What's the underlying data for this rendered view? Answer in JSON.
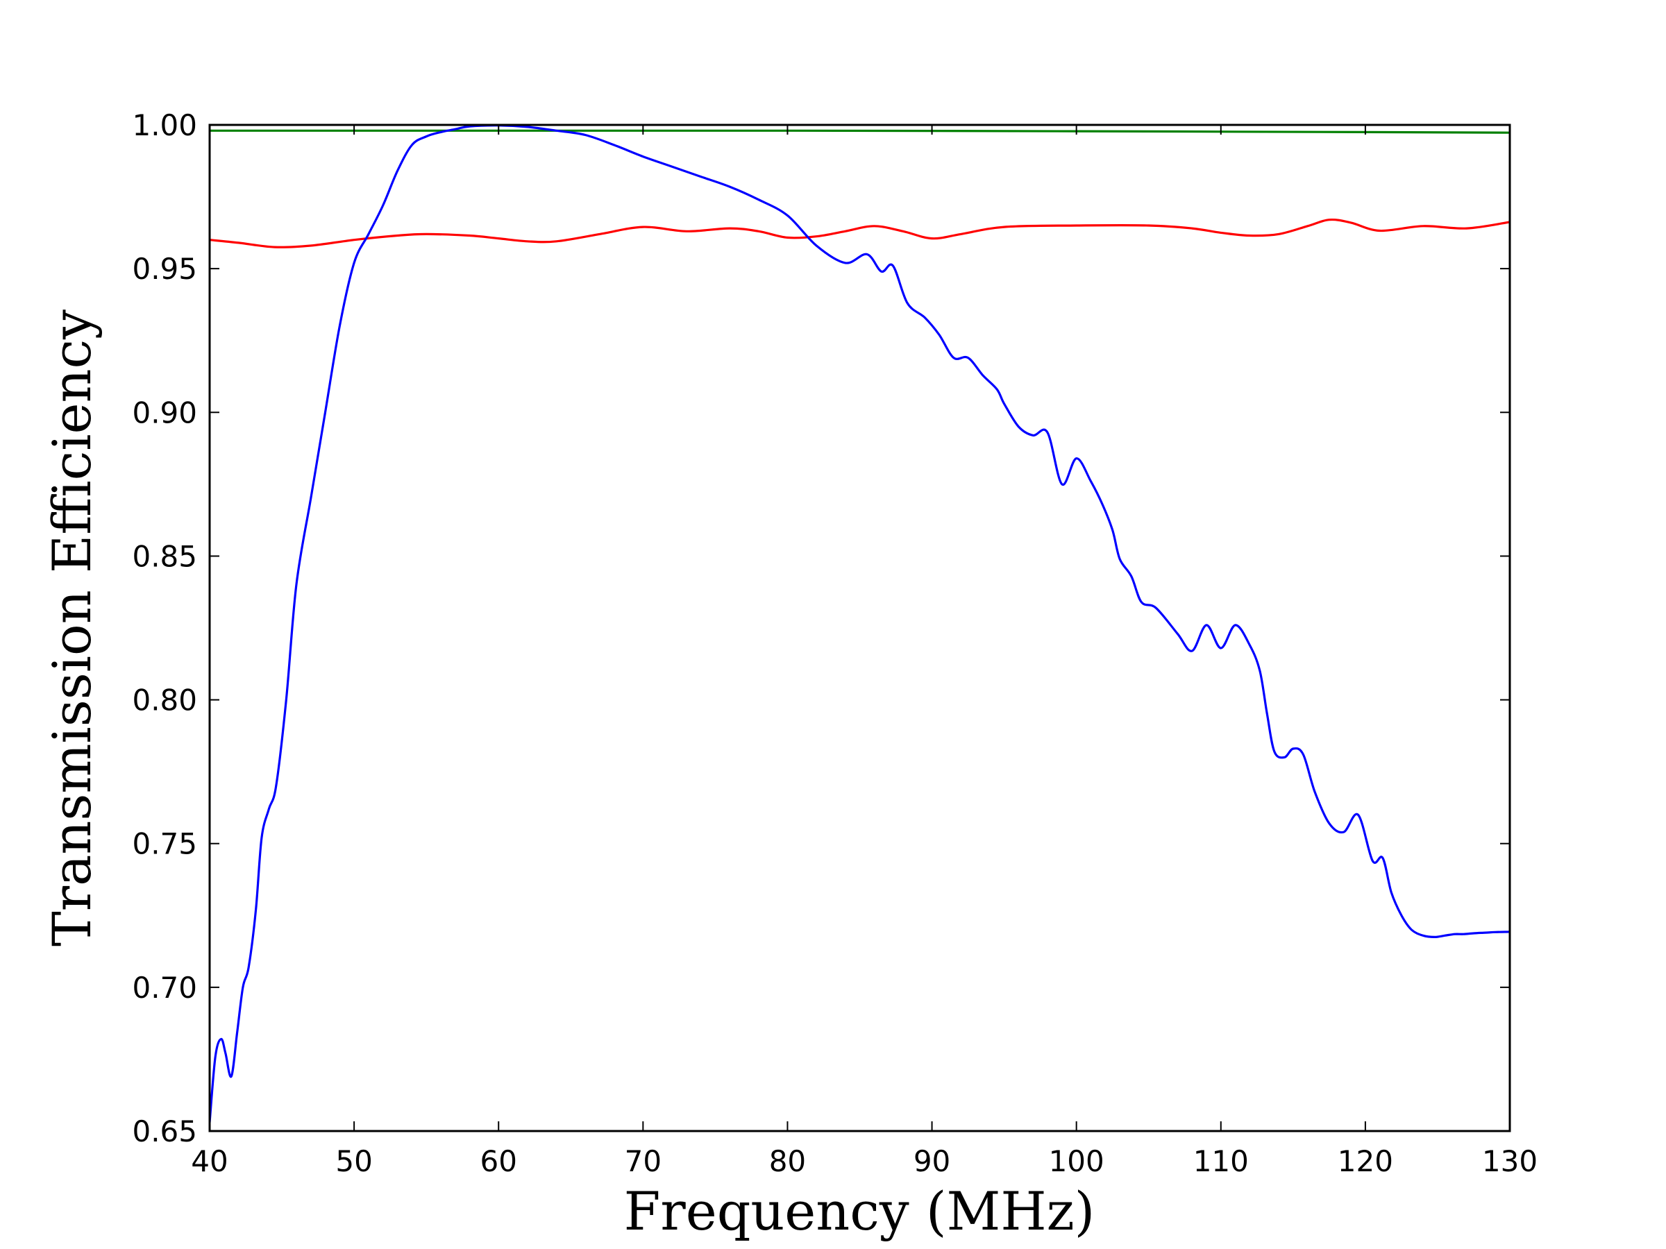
{
  "chart_data": {
    "type": "line",
    "title": "",
    "xlabel": "Frequency (MHz)",
    "ylabel": "Transmission Efficiency",
    "xlim": [
      40,
      130
    ],
    "ylim": [
      0.65,
      1.0
    ],
    "xticks": [
      40,
      50,
      60,
      70,
      80,
      90,
      100,
      110,
      120,
      130
    ],
    "xtick_labels": [
      "40",
      "50",
      "60",
      "70",
      "80",
      "90",
      "100",
      "110",
      "120",
      "130"
    ],
    "yticks": [
      0.65,
      0.7,
      0.75,
      0.8,
      0.85,
      0.9,
      0.95,
      1.0
    ],
    "ytick_labels": [
      "0.65",
      "0.70",
      "0.75",
      "0.80",
      "0.85",
      "0.90",
      "0.95",
      "1.00"
    ],
    "grid": false,
    "legend": "none",
    "series": [
      {
        "name": "green",
        "color": "#008000",
        "x": [
          40,
          60,
          80,
          100,
          120,
          130
        ],
        "y": [
          0.998,
          0.998,
          0.998,
          0.9978,
          0.9975,
          0.9973
        ]
      },
      {
        "name": "red",
        "color": "#ff0000",
        "x": [
          40,
          42,
          44.5,
          47,
          50,
          53,
          55,
          58,
          60,
          62,
          64,
          67,
          70,
          73,
          76,
          78,
          80,
          82,
          84,
          86,
          88,
          90,
          92,
          95,
          100,
          105,
          108,
          110,
          112,
          114,
          116,
          117.5,
          119,
          121,
          124,
          127,
          130
        ],
        "y": [
          0.96,
          0.959,
          0.9575,
          0.958,
          0.96,
          0.9615,
          0.962,
          0.9615,
          0.9605,
          0.9595,
          0.9595,
          0.962,
          0.9645,
          0.963,
          0.964,
          0.963,
          0.9608,
          0.9612,
          0.963,
          0.9648,
          0.963,
          0.9605,
          0.962,
          0.9645,
          0.965,
          0.965,
          0.964,
          0.9625,
          0.9615,
          0.962,
          0.9648,
          0.967,
          0.966,
          0.9632,
          0.9648,
          0.964,
          0.9662
        ]
      },
      {
        "name": "blue",
        "color": "#0000ff",
        "x": [
          40,
          40.4,
          40.8,
          41.1,
          41.5,
          41.9,
          42.3,
          42.7,
          43.2,
          43.6,
          44.1,
          44.6,
          45.3,
          46,
          47,
          48,
          49,
          50,
          51,
          52,
          53,
          54,
          55,
          56,
          57,
          58,
          60,
          62,
          64,
          66,
          68,
          70,
          72,
          74,
          76,
          78,
          80,
          82,
          84,
          85.5,
          86.5,
          87.3,
          88.3,
          89.5,
          90.5,
          91.5,
          92.5,
          93.5,
          94.5,
          95,
          96,
          97,
          98,
          99,
          100,
          101,
          101.8,
          102.5,
          103,
          103.8,
          104.5,
          105.5,
          107,
          108,
          109,
          110,
          111,
          112,
          112.7,
          113.2,
          113.7,
          114.4,
          115,
          115.7,
          116.5,
          117.5,
          118.5,
          119.5,
          120.5,
          121.2,
          121.8,
          122.5,
          123.2,
          124,
          124.8,
          125.5,
          126.2,
          126.8,
          127.5,
          128.3,
          129,
          130
        ],
        "y": [
          0.653,
          0.676,
          0.682,
          0.677,
          0.669,
          0.684,
          0.7,
          0.707,
          0.727,
          0.752,
          0.762,
          0.77,
          0.8,
          0.84,
          0.87,
          0.9,
          0.93,
          0.952,
          0.962,
          0.972,
          0.984,
          0.993,
          0.996,
          0.9975,
          0.9985,
          0.9995,
          0.9998,
          0.9993,
          0.998,
          0.9965,
          0.993,
          0.989,
          0.9855,
          0.982,
          0.9785,
          0.974,
          0.9685,
          0.958,
          0.952,
          0.955,
          0.949,
          0.951,
          0.938,
          0.933,
          0.927,
          0.919,
          0.919,
          0.913,
          0.908,
          0.903,
          0.895,
          0.892,
          0.893,
          0.875,
          0.884,
          0.876,
          0.868,
          0.859,
          0.849,
          0.843,
          0.834,
          0.832,
          0.823,
          0.817,
          0.826,
          0.818,
          0.826,
          0.819,
          0.81,
          0.795,
          0.782,
          0.78,
          0.783,
          0.781,
          0.768,
          0.757,
          0.754,
          0.76,
          0.744,
          0.745,
          0.733,
          0.725,
          0.72,
          0.718,
          0.7175,
          0.718,
          0.7185,
          0.7185,
          0.7188,
          0.719,
          0.7192,
          0.7193
        ]
      }
    ]
  }
}
